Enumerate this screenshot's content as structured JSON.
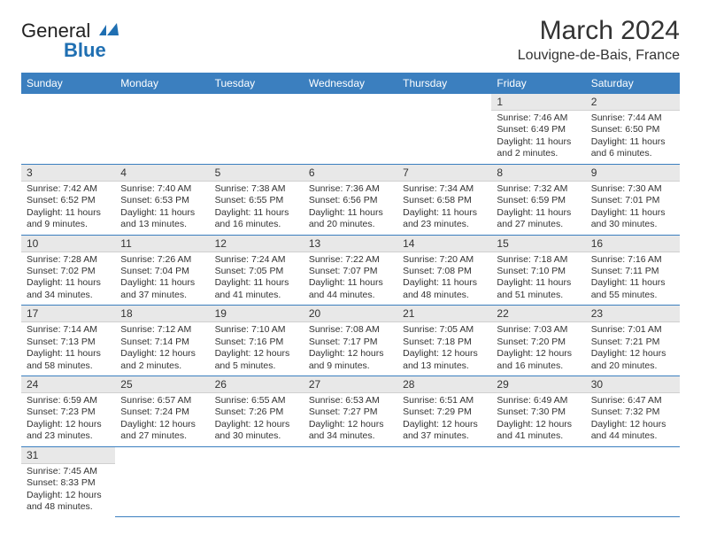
{
  "brand": {
    "line1": "General",
    "line2": "Blue"
  },
  "title": "March 2024",
  "location": "Louvigne-de-Bais, France",
  "colors": {
    "header_bg": "#3b7fbf",
    "header_fg": "#ffffff",
    "daynum_bg": "#e8e8e8",
    "grid_line": "#3b7fbf",
    "logo_blue": "#1f6fb2"
  },
  "columns": [
    "Sunday",
    "Monday",
    "Tuesday",
    "Wednesday",
    "Thursday",
    "Friday",
    "Saturday"
  ],
  "weeks": [
    [
      null,
      null,
      null,
      null,
      null,
      {
        "n": "1",
        "sunrise": "7:46 AM",
        "sunset": "6:49 PM",
        "daylight": "11 hours and 2 minutes."
      },
      {
        "n": "2",
        "sunrise": "7:44 AM",
        "sunset": "6:50 PM",
        "daylight": "11 hours and 6 minutes."
      }
    ],
    [
      {
        "n": "3",
        "sunrise": "7:42 AM",
        "sunset": "6:52 PM",
        "daylight": "11 hours and 9 minutes."
      },
      {
        "n": "4",
        "sunrise": "7:40 AM",
        "sunset": "6:53 PM",
        "daylight": "11 hours and 13 minutes."
      },
      {
        "n": "5",
        "sunrise": "7:38 AM",
        "sunset": "6:55 PM",
        "daylight": "11 hours and 16 minutes."
      },
      {
        "n": "6",
        "sunrise": "7:36 AM",
        "sunset": "6:56 PM",
        "daylight": "11 hours and 20 minutes."
      },
      {
        "n": "7",
        "sunrise": "7:34 AM",
        "sunset": "6:58 PM",
        "daylight": "11 hours and 23 minutes."
      },
      {
        "n": "8",
        "sunrise": "7:32 AM",
        "sunset": "6:59 PM",
        "daylight": "11 hours and 27 minutes."
      },
      {
        "n": "9",
        "sunrise": "7:30 AM",
        "sunset": "7:01 PM",
        "daylight": "11 hours and 30 minutes."
      }
    ],
    [
      {
        "n": "10",
        "sunrise": "7:28 AM",
        "sunset": "7:02 PM",
        "daylight": "11 hours and 34 minutes."
      },
      {
        "n": "11",
        "sunrise": "7:26 AM",
        "sunset": "7:04 PM",
        "daylight": "11 hours and 37 minutes."
      },
      {
        "n": "12",
        "sunrise": "7:24 AM",
        "sunset": "7:05 PM",
        "daylight": "11 hours and 41 minutes."
      },
      {
        "n": "13",
        "sunrise": "7:22 AM",
        "sunset": "7:07 PM",
        "daylight": "11 hours and 44 minutes."
      },
      {
        "n": "14",
        "sunrise": "7:20 AM",
        "sunset": "7:08 PM",
        "daylight": "11 hours and 48 minutes."
      },
      {
        "n": "15",
        "sunrise": "7:18 AM",
        "sunset": "7:10 PM",
        "daylight": "11 hours and 51 minutes."
      },
      {
        "n": "16",
        "sunrise": "7:16 AM",
        "sunset": "7:11 PM",
        "daylight": "11 hours and 55 minutes."
      }
    ],
    [
      {
        "n": "17",
        "sunrise": "7:14 AM",
        "sunset": "7:13 PM",
        "daylight": "11 hours and 58 minutes."
      },
      {
        "n": "18",
        "sunrise": "7:12 AM",
        "sunset": "7:14 PM",
        "daylight": "12 hours and 2 minutes."
      },
      {
        "n": "19",
        "sunrise": "7:10 AM",
        "sunset": "7:16 PM",
        "daylight": "12 hours and 5 minutes."
      },
      {
        "n": "20",
        "sunrise": "7:08 AM",
        "sunset": "7:17 PM",
        "daylight": "12 hours and 9 minutes."
      },
      {
        "n": "21",
        "sunrise": "7:05 AM",
        "sunset": "7:18 PM",
        "daylight": "12 hours and 13 minutes."
      },
      {
        "n": "22",
        "sunrise": "7:03 AM",
        "sunset": "7:20 PM",
        "daylight": "12 hours and 16 minutes."
      },
      {
        "n": "23",
        "sunrise": "7:01 AM",
        "sunset": "7:21 PM",
        "daylight": "12 hours and 20 minutes."
      }
    ],
    [
      {
        "n": "24",
        "sunrise": "6:59 AM",
        "sunset": "7:23 PM",
        "daylight": "12 hours and 23 minutes."
      },
      {
        "n": "25",
        "sunrise": "6:57 AM",
        "sunset": "7:24 PM",
        "daylight": "12 hours and 27 minutes."
      },
      {
        "n": "26",
        "sunrise": "6:55 AM",
        "sunset": "7:26 PM",
        "daylight": "12 hours and 30 minutes."
      },
      {
        "n": "27",
        "sunrise": "6:53 AM",
        "sunset": "7:27 PM",
        "daylight": "12 hours and 34 minutes."
      },
      {
        "n": "28",
        "sunrise": "6:51 AM",
        "sunset": "7:29 PM",
        "daylight": "12 hours and 37 minutes."
      },
      {
        "n": "29",
        "sunrise": "6:49 AM",
        "sunset": "7:30 PM",
        "daylight": "12 hours and 41 minutes."
      },
      {
        "n": "30",
        "sunrise": "6:47 AM",
        "sunset": "7:32 PM",
        "daylight": "12 hours and 44 minutes."
      }
    ],
    [
      {
        "n": "31",
        "sunrise": "7:45 AM",
        "sunset": "8:33 PM",
        "daylight": "12 hours and 48 minutes."
      },
      null,
      null,
      null,
      null,
      null,
      null
    ]
  ],
  "labels": {
    "sunrise": "Sunrise:",
    "sunset": "Sunset:",
    "daylight": "Daylight:"
  }
}
